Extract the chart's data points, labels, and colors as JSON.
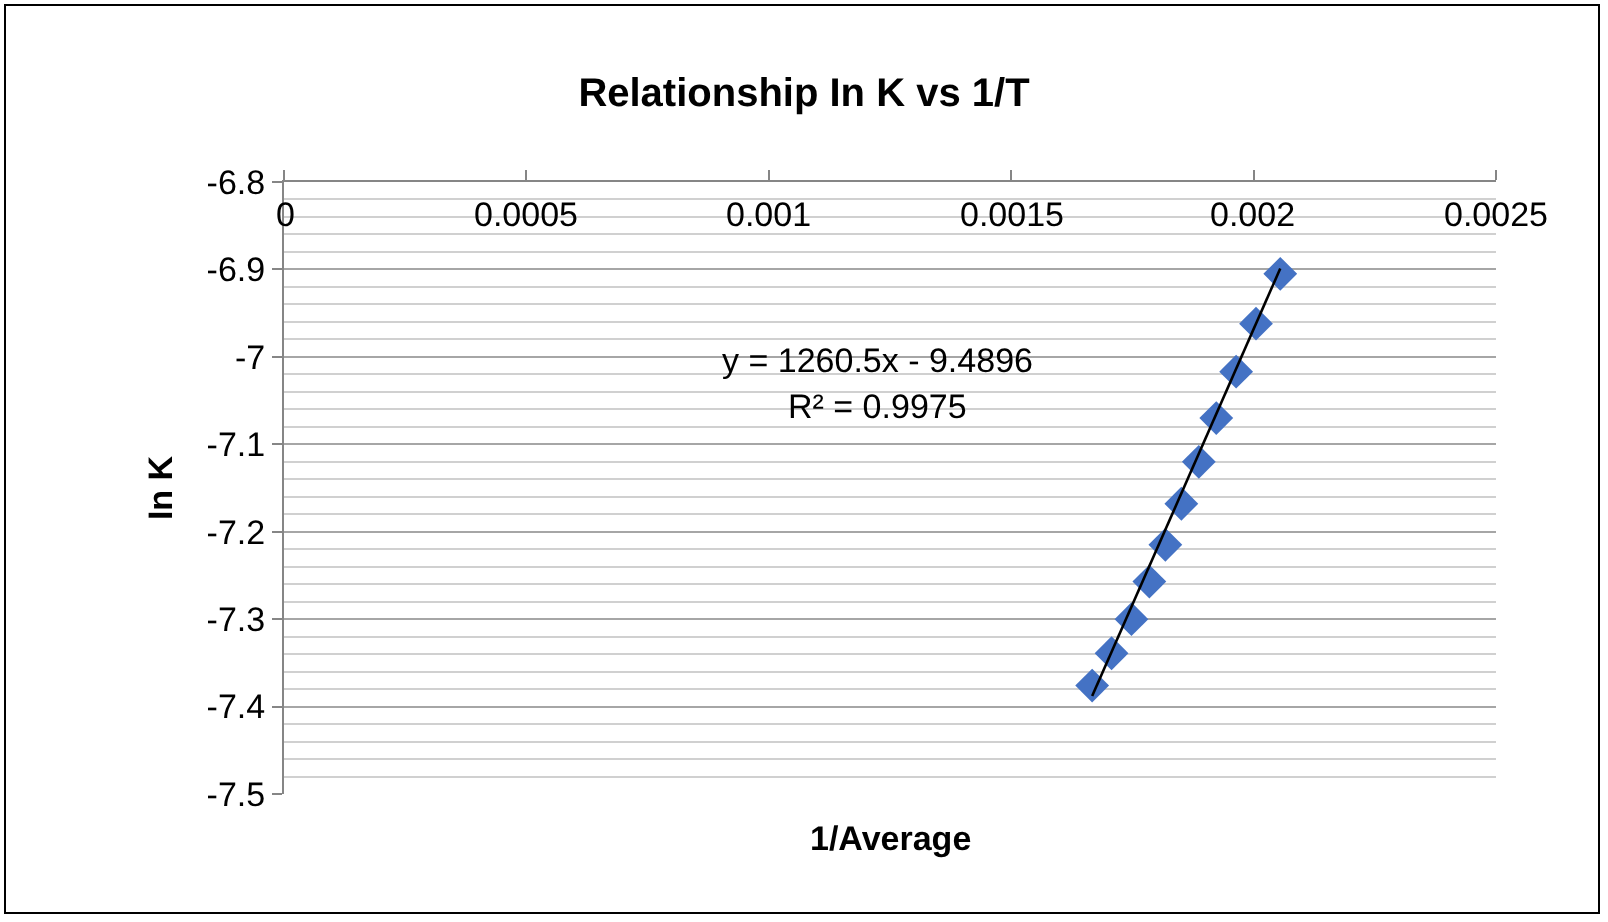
{
  "chart_data": {
    "type": "scatter",
    "title": "Relationship In K vs 1/T",
    "xlabel": "1/Average",
    "ylabel": "In K",
    "series": [
      {
        "color": "#4472c4",
        "marker": "diamond",
        "x": [
          0.002055,
          0.002005,
          0.001964,
          0.001923,
          0.001887,
          0.001851,
          0.001818,
          0.001785,
          0.001748,
          0.001707,
          0.001667
        ],
        "values": [
          -6.905,
          -6.962,
          -7.017,
          -7.07,
          -7.12,
          -7.168,
          -7.215,
          -7.257,
          -7.3,
          -7.339,
          -7.376
        ]
      },
      {
        "type": "line",
        "color": "#000000",
        "x": [
          0.001667,
          0.002055
        ],
        "values": [
          -7.388,
          -6.899
        ]
      }
    ],
    "xlim": [
      0,
      0.0025
    ],
    "xticks": [
      0,
      0.0005,
      0.001,
      0.0015,
      0.002,
      0.0025
    ],
    "ylim": [
      -7.5,
      -6.8
    ],
    "yticks": [
      -7.5,
      -7.4,
      -7.3,
      -7.2,
      -7.1,
      -7,
      -6.9,
      -6.8
    ],
    "grid": "y",
    "annotations": [
      "y = 1260.5x - 9.4896",
      "R² = 0.9975"
    ]
  }
}
